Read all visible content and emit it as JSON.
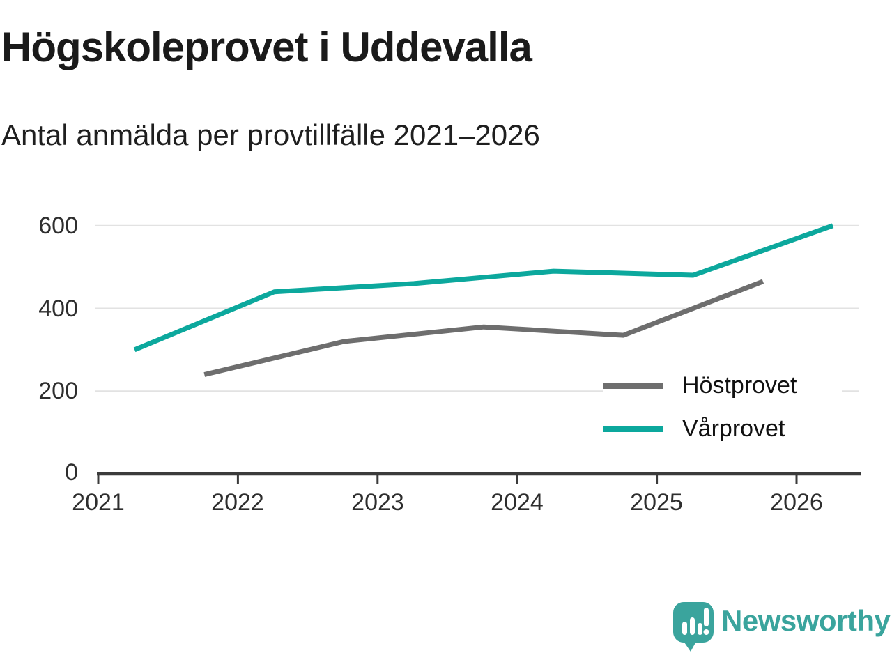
{
  "header": {
    "title": "Högskoleprovet i Uddevalla",
    "subtitle": "Antal anmälda per provtillfälle 2021–2026"
  },
  "chart_data": {
    "type": "line",
    "title": "Högskoleprovet i Uddevalla",
    "subtitle": "Antal anmälda per provtillfälle 2021–2026",
    "xlabel": "",
    "ylabel": "",
    "x_ticks": [
      "2021",
      "2022",
      "2023",
      "2024",
      "2025",
      "2026"
    ],
    "y_ticks": [
      "0",
      "200",
      "400",
      "600"
    ],
    "x_range": [
      2021,
      2026.55
    ],
    "y_range": [
      0,
      620
    ],
    "grid": true,
    "legend_position": "middle-right",
    "series": [
      {
        "name": "Höstprovet",
        "color": "#6e6e6e",
        "points": [
          [
            2021.76,
            240
          ],
          [
            2022.76,
            320
          ],
          [
            2023.76,
            355
          ],
          [
            2024.76,
            335
          ],
          [
            2025.76,
            465
          ]
        ]
      },
      {
        "name": "Vårprovet",
        "color": "#0ca89d",
        "points": [
          [
            2021.26,
            300
          ],
          [
            2022.26,
            440
          ],
          [
            2023.26,
            460
          ],
          [
            2024.26,
            490
          ],
          [
            2025.26,
            480
          ],
          [
            2026.26,
            600
          ]
        ]
      }
    ],
    "axis_color": "#3b3b3b",
    "gridline_color": "#e2e2e2"
  },
  "footer": {
    "brand": "Newsworthy",
    "brand_color": "#3aa49d"
  }
}
